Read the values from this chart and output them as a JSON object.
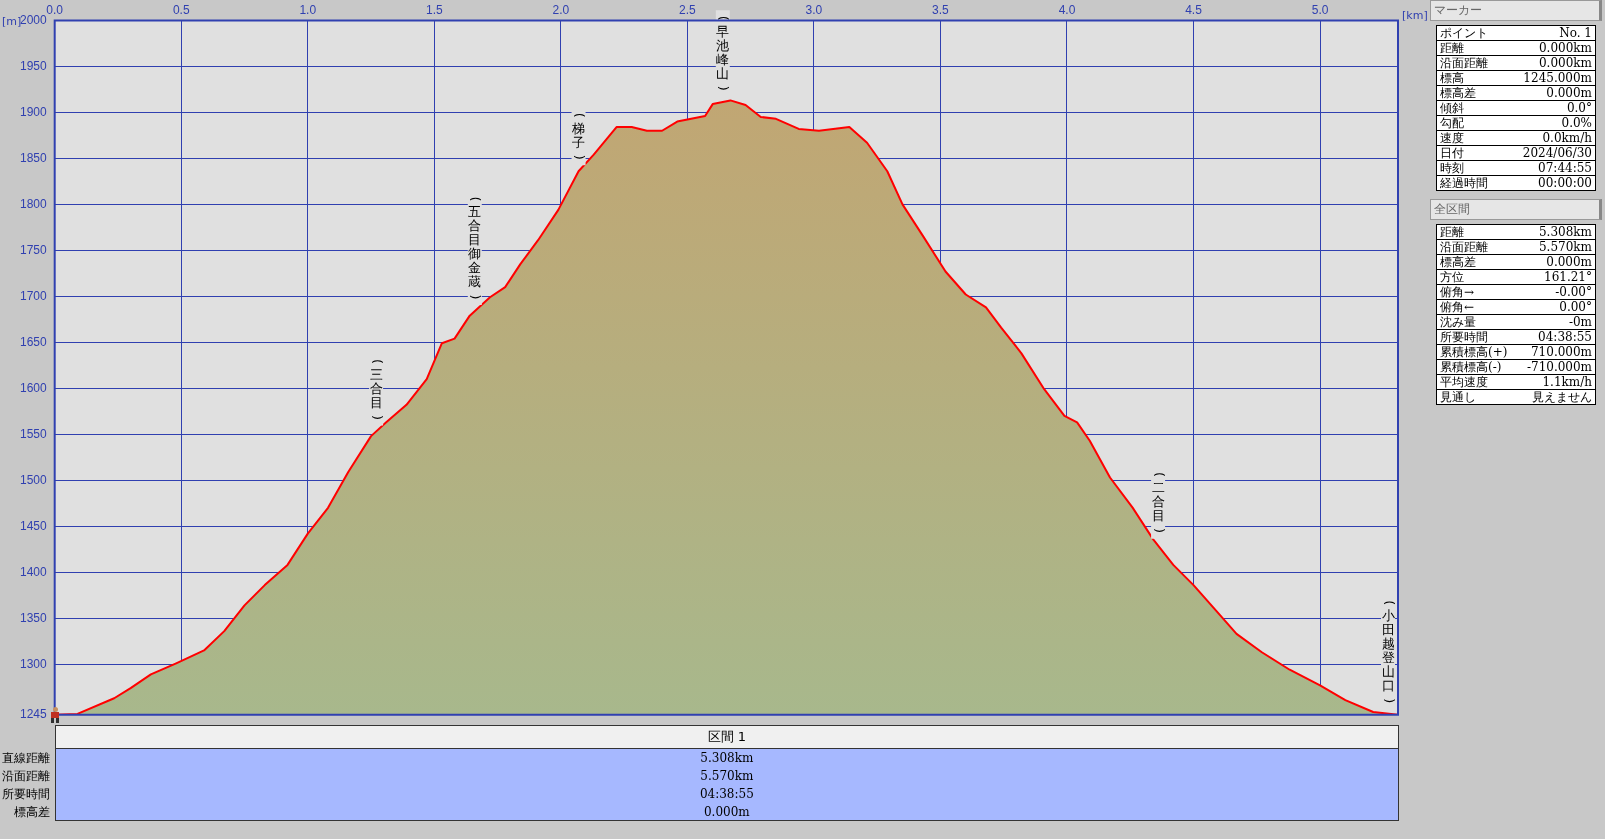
{
  "chart_data": [
    {
      "type": "area",
      "xlabel": "[km]",
      "ylabel": "[m]",
      "xlim": [
        0,
        5.308
      ],
      "xticks": [
        {
          "value": 0,
          "label": "0.0"
        },
        {
          "value": 0.5,
          "label": "0.5"
        },
        {
          "value": 1,
          "label": "1.0"
        },
        {
          "value": 1.5,
          "label": "1.5"
        },
        {
          "value": 2,
          "label": "2.0"
        },
        {
          "value": 2.5,
          "label": "2.5"
        },
        {
          "value": 3,
          "label": "3.0"
        },
        {
          "value": 3.5,
          "label": "3.5"
        },
        {
          "value": 4,
          "label": "4.0"
        },
        {
          "value": 4.5,
          "label": "4.5"
        },
        {
          "value": 5,
          "label": "5.0"
        }
      ],
      "ylim": [
        1245,
        2000
      ],
      "yticks": [
        1245,
        1300,
        1350,
        1400,
        1450,
        1500,
        1550,
        1600,
        1650,
        1700,
        1750,
        1800,
        1850,
        1900,
        1950,
        2000
      ],
      "grid": true,
      "legend": false,
      "x": [
        0,
        0.09,
        0.235,
        0.3,
        0.38,
        0.48,
        0.59,
        0.67,
        0.75,
        0.83,
        0.92,
        1.0,
        1.08,
        1.16,
        1.25,
        1.31,
        1.39,
        1.47,
        1.53,
        1.58,
        1.64,
        1.72,
        1.78,
        1.84,
        1.91,
        1.99,
        2.07,
        2.13,
        2.22,
        2.28,
        2.34,
        2.4,
        2.46,
        2.57,
        2.6,
        2.67,
        2.73,
        2.79,
        2.85,
        2.94,
        3.02,
        3.14,
        3.21,
        3.29,
        3.35,
        3.43,
        3.52,
        3.6,
        3.68,
        3.74,
        3.82,
        3.91,
        3.99,
        4.04,
        4.09,
        4.17,
        4.26,
        4.34,
        4.42,
        4.5,
        4.59,
        4.67,
        4.77,
        4.88,
        5.0,
        5.1,
        5.21,
        5.308
      ],
      "series": [
        {
          "color": "#ff0000",
          "values": [
            1245,
            1246,
            1263,
            1274,
            1289,
            1301,
            1315,
            1336,
            1364,
            1386,
            1408,
            1442,
            1470,
            1509,
            1548,
            1563,
            1582,
            1610,
            1649,
            1654,
            1679,
            1699,
            1710,
            1735,
            1761,
            1794,
            1836,
            1854,
            1884,
            1884,
            1880,
            1880,
            1890,
            1896,
            1909,
            1913,
            1908,
            1895,
            1893,
            1882,
            1880,
            1884,
            1867,
            1836,
            1800,
            1766,
            1727,
            1702,
            1688,
            1666,
            1638,
            1599,
            1570,
            1563,
            1543,
            1503,
            1470,
            1436,
            1408,
            1386,
            1358,
            1333,
            1313,
            1294,
            1277,
            1261,
            1248,
            1245
          ]
        }
      ],
      "annotations": [
        {
          "text": "(三合目)",
          "x": 1.27,
          "y": 1553
        },
        {
          "text": "(五合目御金蔵)",
          "x": 1.66,
          "y": 1684
        },
        {
          "text": "(梯子)",
          "x": 2.07,
          "y": 1836
        },
        {
          "text": "(早池峰山)",
          "x": 2.64,
          "y": 1911
        },
        {
          "text": "(二合目)",
          "x": 4.36,
          "y": 1430
        },
        {
          "text": "(小田越登山口)",
          "x": 5.3,
          "y": 1245
        }
      ]
    },
    {
      "type": "other",
      "title": "マーカー",
      "categories": [
        "ポイント",
        "距離",
        "沿面距離",
        "標高",
        "標高差",
        "傾斜",
        "勾配",
        "速度",
        "日付",
        "時刻",
        "経過時間"
      ],
      "annotations": [
        "No. 1",
        "0.000km",
        "0.000km",
        "1245.000m",
        "0.000m",
        "0.0°",
        "0.0%",
        "0.0km/h",
        "2024/06/30",
        "07:44:55",
        "00:00:00"
      ]
    },
    {
      "type": "other",
      "title": "全区間",
      "categories": [
        "距離",
        "沿面距離",
        "標高差",
        "方位",
        "俯角→",
        "俯角←",
        "沈み量",
        "所要時間",
        "累積標高(+)",
        "累積標高(-)",
        "平均速度",
        "見通し"
      ],
      "annotations": [
        "5.308km",
        "5.570km",
        "0.000m",
        "161.21°",
        "-0.00°",
        "0.00°",
        "-0m",
        "04:38:55",
        "710.000m",
        "-710.000m",
        "1.1km/h",
        "見えません"
      ]
    },
    {
      "type": "other",
      "title": "区間 1",
      "categories": [
        "直線距離",
        "沿面距離",
        "所要時間",
        "標高差"
      ],
      "annotations": [
        "5.308km",
        "5.570km",
        "04:38:55",
        "0.000m"
      ]
    }
  ]
}
